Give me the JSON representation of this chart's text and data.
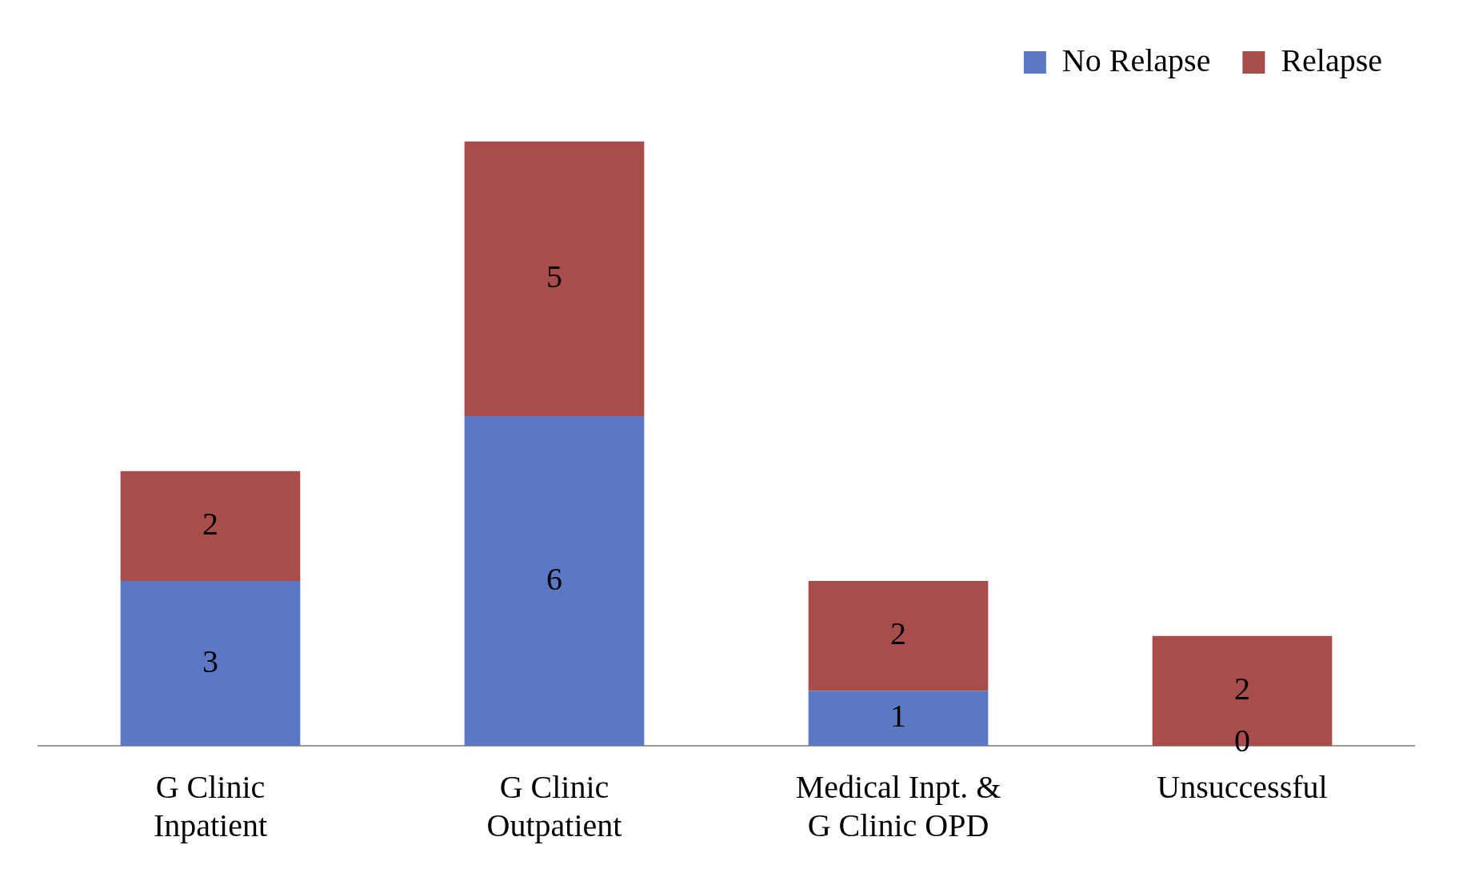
{
  "chart_data": {
    "type": "bar",
    "stacked": true,
    "categories": [
      "G Clinic Inpatient",
      "G Clinic Outpatient",
      "Medical Inpt. & G Clinic OPD",
      "Unsuccessful"
    ],
    "series": [
      {
        "name": "No Relapse",
        "color": "#5b78c4",
        "values": [
          3,
          6,
          1,
          0
        ]
      },
      {
        "name": "Relapse",
        "color": "#a84d4c",
        "values": [
          2,
          5,
          2,
          2
        ]
      }
    ],
    "data_labels": true,
    "legend": "top right",
    "grid": false
  }
}
